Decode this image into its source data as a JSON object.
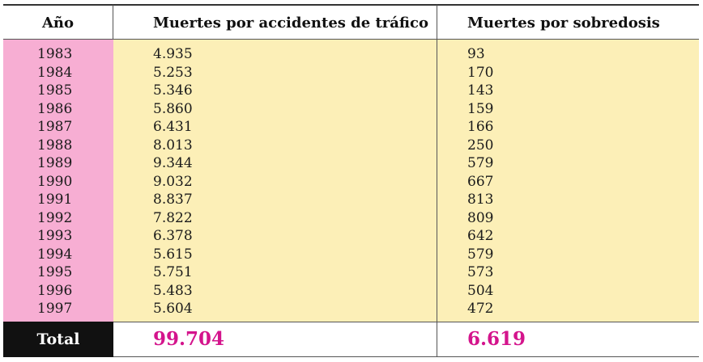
{
  "colors": {
    "year_column": "#f7aed3",
    "value_columns": "#fcefb7",
    "total_label_bg": "#111111",
    "total_value_text": "#d4148c"
  },
  "table": {
    "headers": [
      "Año",
      "Muertes por accidentes de tráfico",
      "Muertes por sobredosis"
    ],
    "total_label": "Total",
    "totals": [
      "99.704",
      "6.619"
    ]
  },
  "chart_data": {
    "type": "table",
    "columns": [
      "Año",
      "Muertes por accidentes de tráfico",
      "Muertes por sobredosis"
    ],
    "rows": [
      [
        "1983",
        "4.935",
        "93"
      ],
      [
        "1984",
        "5.253",
        "170"
      ],
      [
        "1985",
        "5.346",
        "143"
      ],
      [
        "1986",
        "5.860",
        "159"
      ],
      [
        "1987",
        "6.431",
        "166"
      ],
      [
        "1988",
        "8.013",
        "250"
      ],
      [
        "1989",
        "9.344",
        "579"
      ],
      [
        "1990",
        "9.032",
        "667"
      ],
      [
        "1991",
        "8.837",
        "813"
      ],
      [
        "1992",
        "7.822",
        "809"
      ],
      [
        "1993",
        "6.378",
        "642"
      ],
      [
        "1994",
        "5.615",
        "579"
      ],
      [
        "1995",
        "5.751",
        "573"
      ],
      [
        "1996",
        "5.483",
        "504"
      ],
      [
        "1997",
        "5.604",
        "472"
      ]
    ]
  }
}
